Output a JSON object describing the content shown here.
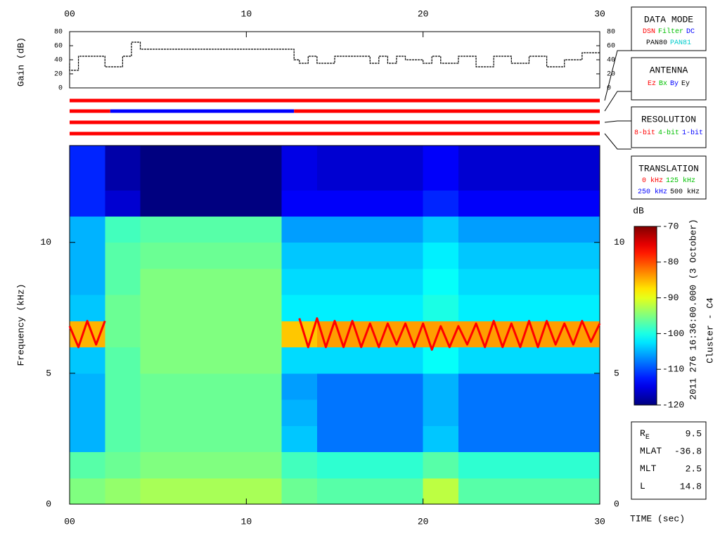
{
  "chart_data": [
    {
      "type": "line",
      "ylabel": "Gain (dB)",
      "step": true,
      "color": "#000000",
      "x": [
        0,
        0.5,
        1,
        2,
        2.3,
        3,
        3.5,
        4,
        4.5,
        12.7,
        13,
        13.5,
        14,
        15,
        16,
        17,
        17.5,
        18,
        18.5,
        19,
        20,
        20.5,
        21,
        22,
        23,
        24,
        25,
        26,
        27,
        28,
        29,
        30
      ],
      "values": [
        35,
        25,
        45,
        45,
        30,
        30,
        45,
        65,
        55,
        55,
        40,
        35,
        45,
        35,
        45,
        45,
        35,
        45,
        35,
        45,
        40,
        35,
        45,
        35,
        45,
        30,
        45,
        35,
        45,
        30,
        40,
        50
      ],
      "xlim": [
        0,
        30
      ],
      "xticks": [
        {
          "value": 0,
          "label": "00"
        },
        10,
        20,
        30
      ],
      "ylim": [
        0,
        80
      ],
      "yticks": [
        0,
        20,
        40,
        60,
        80
      ]
    },
    {
      "type": "status",
      "xlim": [
        0,
        30
      ],
      "rows": [
        {
          "segments": [
            {
              "start": 0,
              "end": 30,
              "color": "#ff0000"
            }
          ]
        },
        {
          "segments": [
            {
              "start": 0,
              "end": 2.3,
              "color": "#ff0000"
            },
            {
              "start": 2.3,
              "end": 12.7,
              "color": "#0000ff"
            },
            {
              "start": 12.7,
              "end": 30,
              "color": "#ff0000"
            }
          ]
        },
        {
          "segments": [
            {
              "start": 0,
              "end": 30,
              "color": "#ff0000"
            }
          ]
        },
        {
          "segments": [
            {
              "start": 0,
              "end": 30,
              "color": "#ff0000"
            }
          ]
        }
      ]
    },
    {
      "type": "heatmap",
      "ylabel": "Frequency (kHz)",
      "xlabel": "TIME (sec)",
      "time_edges": [
        0,
        2,
        4,
        6,
        8,
        10,
        12,
        14,
        16,
        18,
        20,
        22,
        24,
        26,
        28,
        30
      ],
      "freq_edges": [
        0,
        1,
        2,
        3,
        4,
        5,
        6,
        7,
        8,
        9,
        10,
        11,
        12,
        13,
        13.7
      ],
      "z": [
        [
          -95,
          -97,
          -105,
          -105,
          -105,
          -104,
          -85,
          -104,
          -105,
          -105,
          -105,
          -112,
          -112,
          -112
        ],
        [
          -94,
          -96,
          -97,
          -97,
          -97,
          -97,
          -96,
          -96,
          -97,
          -97,
          -98,
          -116,
          -118,
          -118
        ],
        [
          -93,
          -95,
          -96,
          -96,
          -96,
          -95,
          -95,
          -95,
          -95,
          -96,
          -97,
          -120,
          -120,
          -120
        ],
        [
          -93,
          -95,
          -96,
          -96,
          -96,
          -95,
          -95,
          -95,
          -95,
          -96,
          -97,
          -120,
          -120,
          -120
        ],
        [
          -93,
          -95,
          -96,
          -96,
          -96,
          -95,
          -95,
          -95,
          -95,
          -96,
          -97,
          -120,
          -120,
          -120
        ],
        [
          -93,
          -95,
          -96,
          -96,
          -96,
          -95,
          -95,
          -95,
          -95,
          -96,
          -97,
          -120,
          -120,
          -120
        ],
        [
          -96,
          -98,
          -104,
          -105,
          -106,
          -103,
          -86,
          -102,
          -103,
          -104,
          -106,
          -114,
          -115,
          -115
        ],
        [
          -97,
          -99,
          -108,
          -108,
          -108,
          -103,
          -84,
          -102,
          -103,
          -104,
          -106,
          -114,
          -116,
          -116
        ],
        [
          -97,
          -99,
          -108,
          -108,
          -108,
          -103,
          -84,
          -102,
          -103,
          -104,
          -106,
          -114,
          -116,
          -116
        ],
        [
          -97,
          -99,
          -108,
          -108,
          -108,
          -103,
          -84,
          -102,
          -103,
          -104,
          -106,
          -114,
          -116,
          -116
        ],
        [
          -92,
          -97,
          -104,
          -105,
          -105,
          -101,
          -84,
          -100,
          -101,
          -102,
          -104,
          -112,
          -114,
          -114
        ],
        [
          -97,
          -99,
          -108,
          -108,
          -108,
          -103,
          -84,
          -102,
          -103,
          -104,
          -106,
          -114,
          -116,
          -116
        ],
        [
          -97,
          -99,
          -108,
          -108,
          -108,
          -103,
          -84,
          -102,
          -103,
          -104,
          -106,
          -114,
          -116,
          -116
        ],
        [
          -97,
          -99,
          -108,
          -108,
          -108,
          -103,
          -84,
          -102,
          -103,
          -104,
          -106,
          -114,
          -116,
          -116
        ],
        [
          -97,
          -99,
          -108,
          -108,
          -108,
          -103,
          -84,
          -102,
          -103,
          -104,
          -106,
          -114,
          -116,
          -116
        ]
      ],
      "series": [
        {
          "color": "#ff0000",
          "x": [
            0,
            0.5,
            1,
            1.5,
            2,
            2.5,
            3,
            3.5,
            4,
            4.5,
            5,
            5.5,
            6,
            6.5,
            7,
            7.5,
            8,
            8.5,
            9,
            9.5,
            10,
            10.5,
            11,
            11.5,
            12,
            12.5,
            13,
            13.5,
            14,
            14.5,
            15,
            15.5,
            16,
            16.5,
            17,
            17.5,
            18,
            18.5,
            19,
            19.5,
            20,
            20.5,
            21,
            21.5,
            22,
            22.5,
            23,
            23.5,
            24,
            24.5,
            25,
            25.5,
            26,
            26.5,
            27,
            27.5,
            28,
            28.5,
            29,
            29.5,
            30
          ],
          "values": [
            6.8,
            6.0,
            7.0,
            6.1,
            7.0,
            null,
            null,
            null,
            null,
            null,
            null,
            null,
            null,
            null,
            null,
            null,
            null,
            null,
            null,
            null,
            null,
            null,
            null,
            null,
            null,
            null,
            7.1,
            6.0,
            7.1,
            6.0,
            7.0,
            6.0,
            7.0,
            6.0,
            6.9,
            6.0,
            6.9,
            6.1,
            6.9,
            6.0,
            6.9,
            5.9,
            6.8,
            6.0,
            6.8,
            6.1,
            6.9,
            6.0,
            7.0,
            6.0,
            6.9,
            6.0,
            7.0,
            6.0,
            7.0,
            6.1,
            6.9,
            6.1,
            7.0,
            6.2,
            6.9
          ]
        }
      ],
      "xlim": [
        0,
        30
      ],
      "xticks": [
        {
          "value": 0,
          "label": "00"
        },
        10,
        20,
        30
      ],
      "ylim": [
        0,
        13.7
      ],
      "yticks": [
        0,
        5,
        10
      ],
      "colorbar": {
        "label": "dB",
        "colormap": "jet",
        "clim": [
          -120,
          -70
        ],
        "ticks": [
          -120,
          -110,
          -100,
          -90,
          -80,
          -70
        ]
      }
    }
  ],
  "annotations": {
    "timestamp": "2011 276 16:36:00.000 (3 October)",
    "spacecraft": "Cluster - C4"
  },
  "legend_boxes": [
    {
      "title": "DATA MODE",
      "lines": [
        [
          {
            "text": "DSN",
            "color": "#ff0000"
          },
          {
            "text": "Filter",
            "color": "#00c000"
          },
          {
            "text": "DC",
            "color": "#0000ff"
          }
        ],
        [
          {
            "text": "PAN80",
            "color": "#000000"
          },
          {
            "text": "PAN81",
            "color": "#00cccc"
          }
        ]
      ]
    },
    {
      "title": "ANTENNA",
      "lines": [
        [
          {
            "text": "Ez",
            "color": "#ff0000"
          },
          {
            "text": "Bx",
            "color": "#00c000"
          },
          {
            "text": "By",
            "color": "#0000ff"
          },
          {
            "text": "Ey",
            "color": "#000000"
          }
        ]
      ]
    },
    {
      "title": "RESOLUTION",
      "lines": [
        [
          {
            "text": "8-bit",
            "color": "#ff0000"
          },
          {
            "text": "4-bit",
            "color": "#00c000"
          },
          {
            "text": "1-bit",
            "color": "#0000ff"
          }
        ]
      ]
    },
    {
      "title": "TRANSLATION",
      "lines": [
        [
          {
            "text": "0 kHz",
            "color": "#ff0000"
          },
          {
            "text": "125 kHz",
            "color": "#00c000"
          }
        ],
        [
          {
            "text": "250 kHz",
            "color": "#0000ff"
          },
          {
            "text": "500 kHz",
            "color": "#000000"
          }
        ]
      ]
    }
  ],
  "ephemeris": [
    {
      "label": "R",
      "subscript": "E",
      "value": 9.5
    },
    {
      "label": "MLAT",
      "value": -36.8
    },
    {
      "label": "MLT",
      "value": 2.5
    },
    {
      "label": "L",
      "value": 14.8
    }
  ]
}
